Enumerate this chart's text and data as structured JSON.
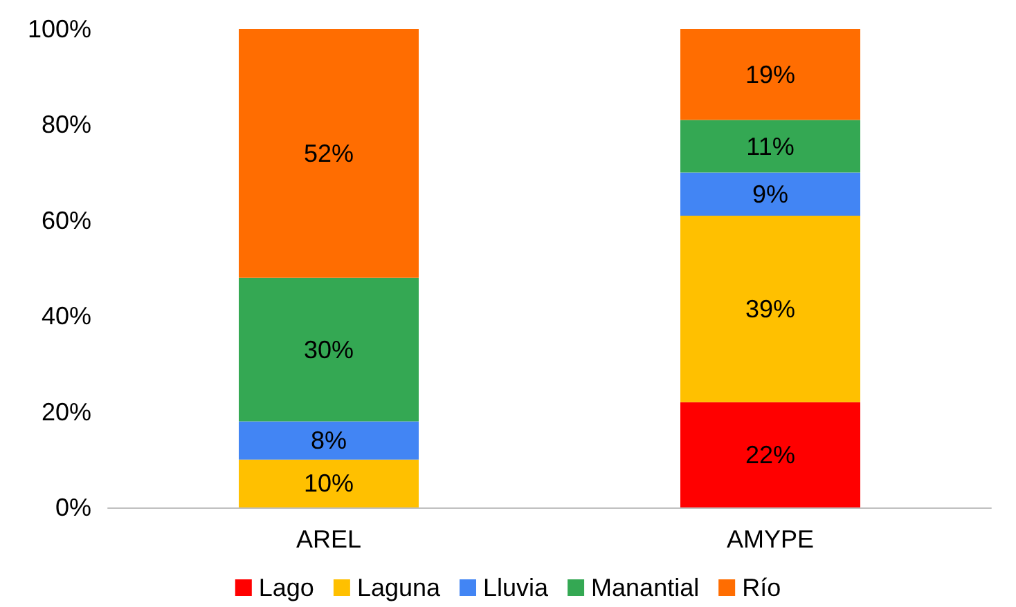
{
  "chart_data": {
    "type": "bar",
    "stacked": true,
    "categories": [
      "AREL",
      "AMYPE"
    ],
    "series": [
      {
        "name": "Lago",
        "color": "#ff0000",
        "values": [
          null,
          22
        ],
        "value_labels": [
          null,
          "22%"
        ]
      },
      {
        "name": "Laguna",
        "color": "#ffc000",
        "values": [
          10,
          39
        ],
        "value_labels": [
          "10%",
          "39%"
        ]
      },
      {
        "name": "Lluvia",
        "color": "#4285f4",
        "values": [
          8,
          9
        ],
        "value_labels": [
          "8%",
          "9%"
        ]
      },
      {
        "name": "Manantial",
        "color": "#34a853",
        "values": [
          30,
          11
        ],
        "value_labels": [
          "30%",
          "11%"
        ]
      },
      {
        "name": "Río",
        "color": "#ff6d01",
        "values": [
          52,
          19
        ],
        "value_labels": [
          "52%",
          "19%"
        ]
      }
    ],
    "ylim": [
      0,
      100
    ],
    "yticks": [
      {
        "value": 0,
        "label": "0%"
      },
      {
        "value": 20,
        "label": "20%"
      },
      {
        "value": 40,
        "label": "40%"
      },
      {
        "value": 60,
        "label": "60%"
      },
      {
        "value": 80,
        "label": "80%"
      },
      {
        "value": 100,
        "label": "100%"
      }
    ],
    "grid": false,
    "legend": "bottom"
  }
}
